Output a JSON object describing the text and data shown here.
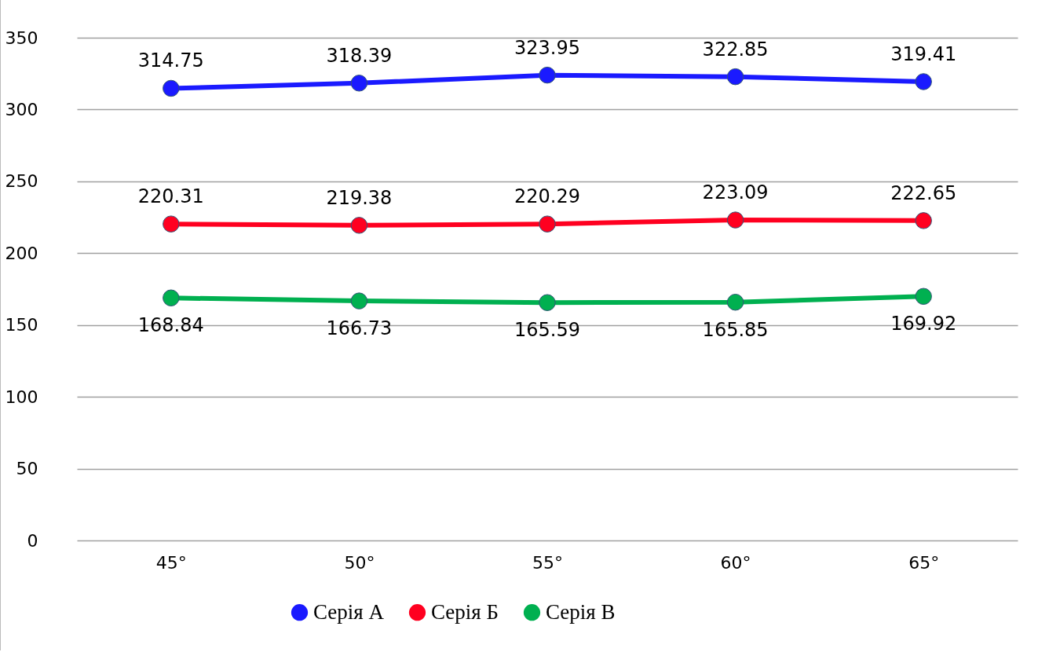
{
  "chart_data": {
    "type": "line",
    "categories": [
      "45°",
      "50°",
      "55°",
      "60°",
      "65°"
    ],
    "series": [
      {
        "name": "Серія А",
        "color": "#1a1aff",
        "values": [
          314.75,
          318.39,
          323.95,
          322.85,
          319.41
        ]
      },
      {
        "name": "Серія Б",
        "color": "#ff0020",
        "values": [
          220.31,
          219.38,
          220.29,
          223.09,
          222.65
        ]
      },
      {
        "name": "Серія В",
        "color": "#00b050",
        "values": [
          168.84,
          166.73,
          165.59,
          165.85,
          169.92
        ]
      }
    ],
    "ylim": [
      0,
      350
    ],
    "yticks": [
      0,
      50,
      100,
      150,
      200,
      250,
      300,
      350
    ],
    "grid": "y",
    "legend": "bottom",
    "marker": "circle",
    "line_style": "solid",
    "data_labels": true
  }
}
